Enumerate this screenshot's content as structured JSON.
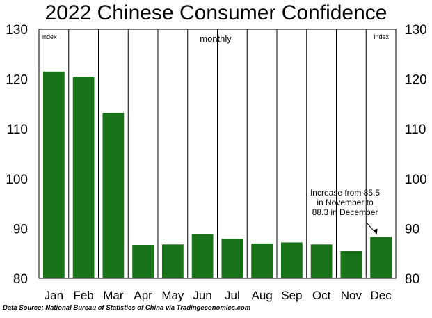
{
  "chart_data": {
    "type": "bar",
    "title": "2022 Chinese Consumer Confidence",
    "subtitle": "monthly",
    "unit_left": "index",
    "unit_right": "index",
    "categories": [
      "Jan",
      "Feb",
      "Mar",
      "Apr",
      "May",
      "Jun",
      "Jul",
      "Aug",
      "Sep",
      "Oct",
      "Nov",
      "Dec"
    ],
    "values": [
      121.5,
      120.5,
      113.2,
      86.7,
      86.8,
      88.9,
      87.9,
      87.0,
      87.2,
      86.8,
      85.5,
      88.3
    ],
    "ylim": [
      80,
      130
    ],
    "yticks": [
      "80",
      "90",
      "100",
      "110",
      "120",
      "130"
    ],
    "grid": "vertical",
    "bar_color": "#187318",
    "annotation": {
      "lines": [
        "Increase from 85.5",
        "in November to",
        "88.3 in December"
      ],
      "target_category": "Dec"
    }
  },
  "source": "Data Source: National Bureau  of Statistics of China via Tradingeconomics.com"
}
